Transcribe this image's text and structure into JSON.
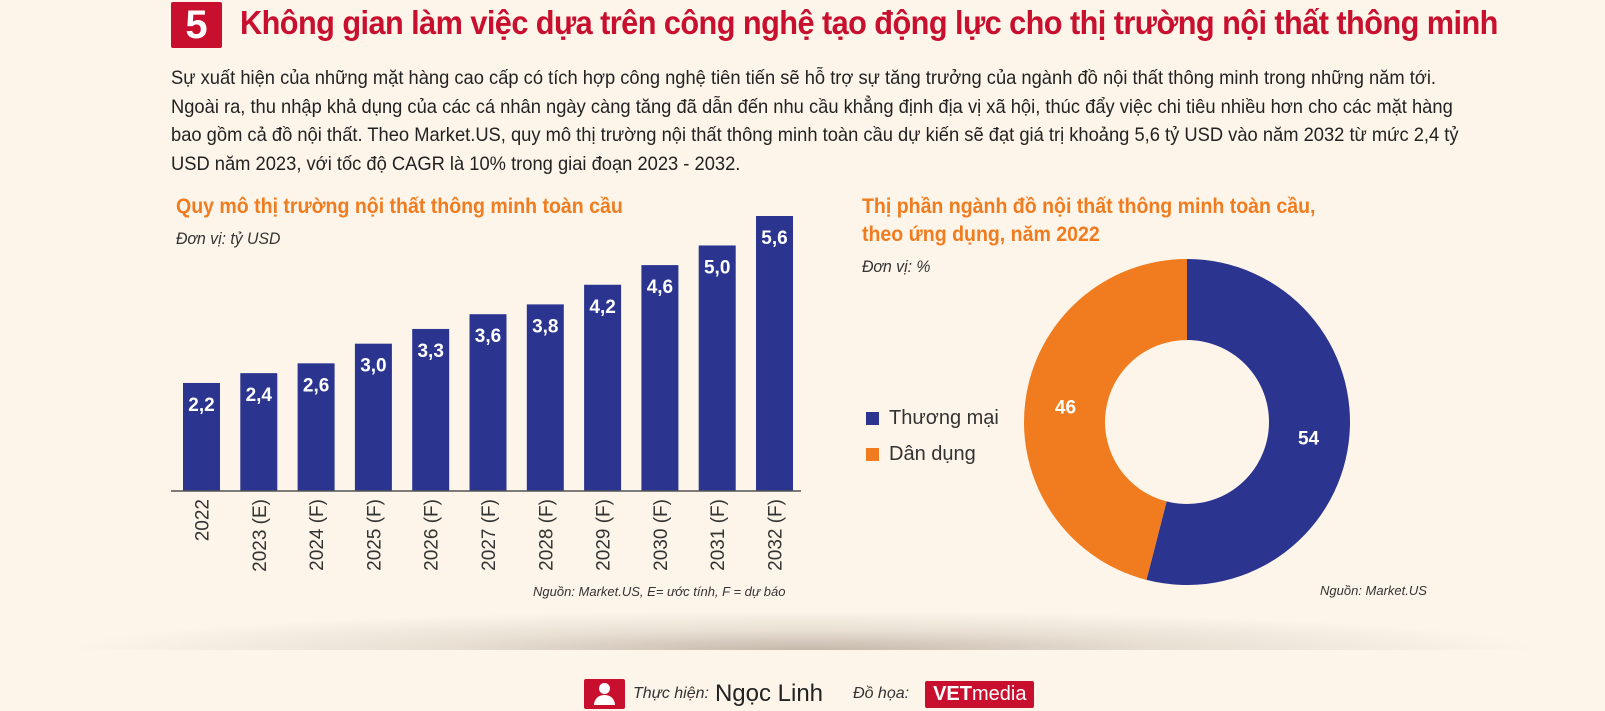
{
  "header": {
    "section_number": "5",
    "title": "Không gian làm việc dựa trên công nghệ tạo động lực cho thị trường nội thất thông minh"
  },
  "intro_text": "Sự xuất hiện của những mặt hàng cao cấp có tích hợp công nghệ tiên tiến sẽ hỗ trợ sự tăng trưởng của ngành đồ nội thất thông minh trong những năm tới. Ngoài ra, thu nhập khả dụng của các cá nhân ngày càng tăng đã dẫn đến nhu cầu khẳng định địa vị xã hội, thúc đẩy việc chi tiêu nhiều hơn cho các mặt hàng bao gồm cả đồ nội thất. Theo Market.US, quy mô thị trường nội thất thông minh toàn cầu dự kiến sẽ đạt giá trị khoảng 5,6 tỷ USD vào năm 2032 từ mức 2,4 tỷ USD năm 2023, với tốc độ CAGR là 10% trong giai đoạn 2023 - 2032.",
  "colors": {
    "accent_red": "#c8102e",
    "bar_blue": "#2b3590",
    "orange": "#f07c1f",
    "background": "#fdf5ea"
  },
  "chart_data": [
    {
      "type": "bar",
      "title": "Quy mô thị trường nội thất thông minh toàn cầu",
      "unit": "Đơn vị: tỷ USD",
      "categories": [
        "2022",
        "2023 (E)",
        "2024 (F)",
        "2025 (F)",
        "2026 (F)",
        "2027 (F)",
        "2028 (F)",
        "2029 (F)",
        "2030 (F)",
        "2031 (F)",
        "2032 (F)"
      ],
      "values": [
        2.2,
        2.4,
        2.6,
        3.0,
        3.3,
        3.6,
        3.8,
        4.2,
        4.6,
        5.0,
        5.6
      ],
      "value_labels": [
        "2,2",
        "2,4",
        "2,6",
        "3,0",
        "3,3",
        "3,6",
        "3,8",
        "4,2",
        "4,6",
        "5,0",
        "5,6"
      ],
      "ylim": [
        0,
        5.6
      ],
      "grid": false,
      "source": "Nguồn: Market.US, E= ước tính, F = dự báo"
    },
    {
      "type": "pie",
      "title_line1": "Thị phần ngành đồ nội thất thông minh toàn cầu,",
      "title_line2": "theo ứng dụng, năm 2022",
      "unit": "Đơn vị: %",
      "donut": true,
      "slices": [
        {
          "label": "Thương mại",
          "value": 54,
          "color": "#2b3590"
        },
        {
          "label": "Dân dụng",
          "value": 46,
          "color": "#f07c1f"
        }
      ],
      "legend_position": "left",
      "source": "Nguồn: Market.US"
    }
  ],
  "footer": {
    "author_label": "Thực hiện:",
    "author_name": "Ngọc Linh",
    "design_label": "Đồ họa:",
    "logo_bold": "VET",
    "logo_rest": "media"
  }
}
